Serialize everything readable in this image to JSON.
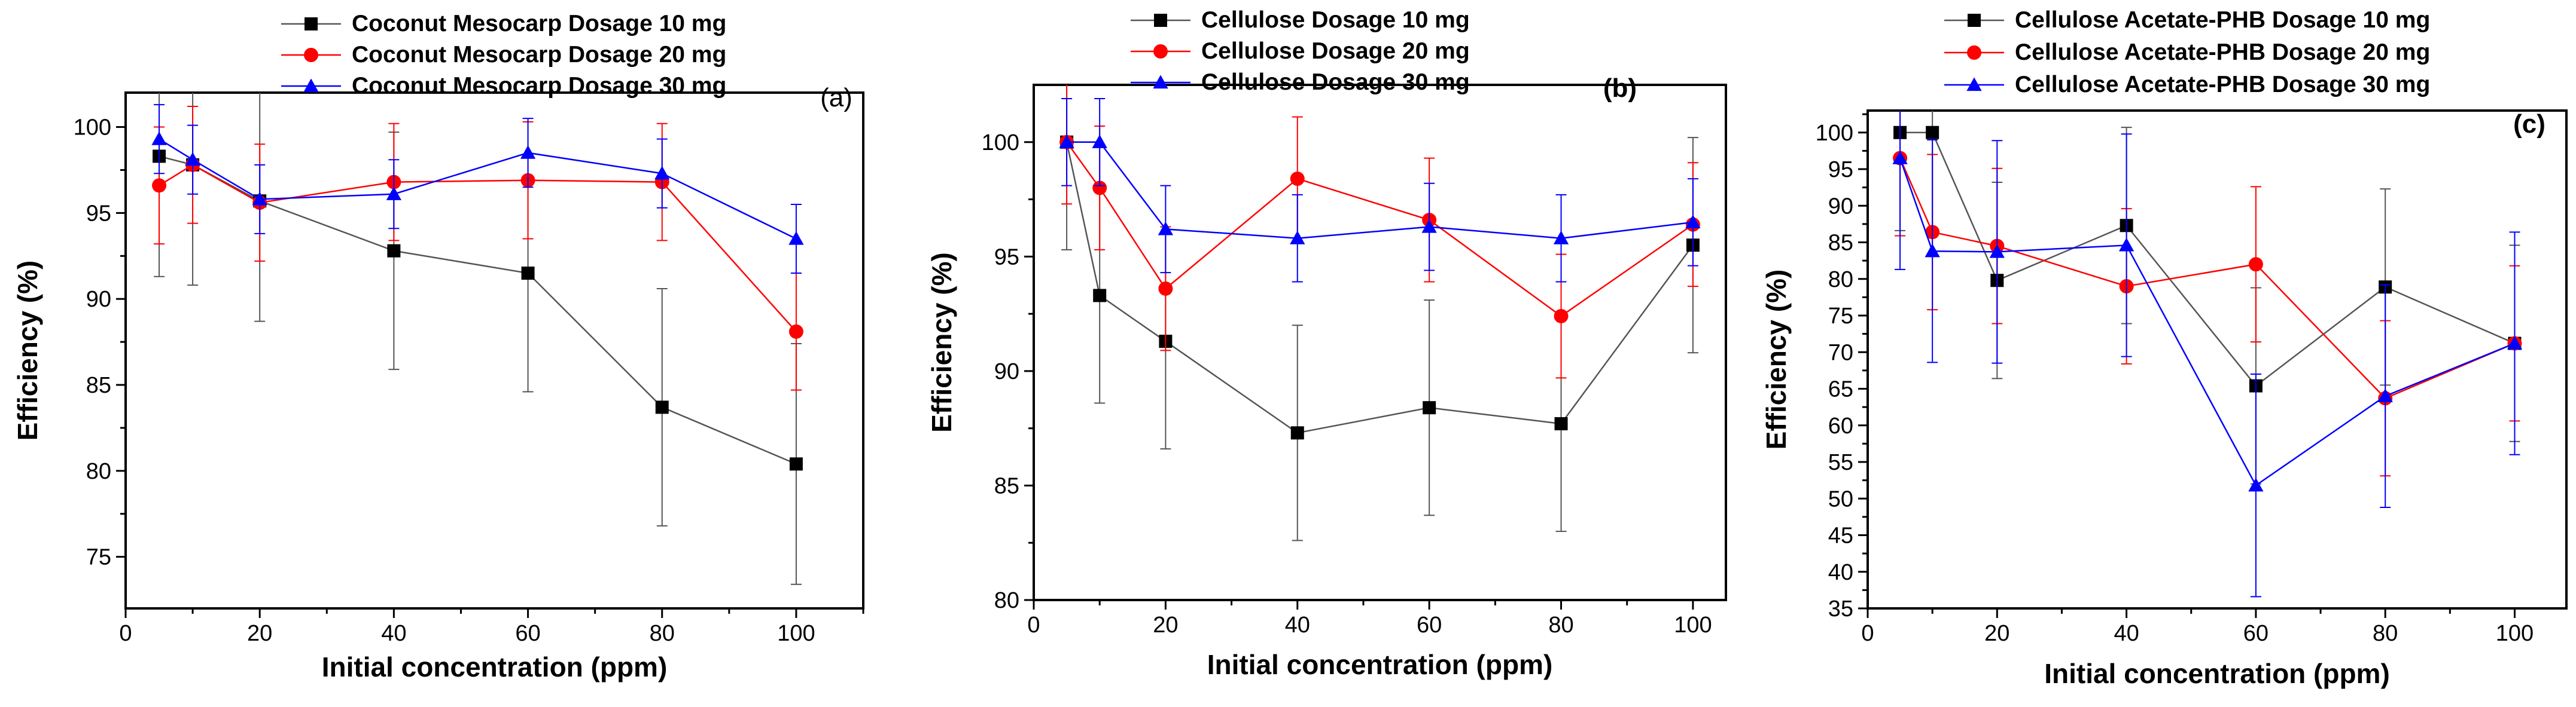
{
  "chart_data": [
    {
      "type": "line",
      "panel_label": "(a)",
      "xlabel": "Initial concentration (ppm)",
      "ylabel": "Efficiency (%)",
      "xlim": [
        0,
        110
      ],
      "ylim": [
        72,
        102
      ],
      "xticks": [
        0,
        20,
        40,
        60,
        80,
        100
      ],
      "yticks": [
        75,
        80,
        85,
        90,
        95,
        100
      ],
      "legend_position": "top",
      "series": [
        {
          "name": "Coconut Mesocarp Dosage 10 mg",
          "color": "#000000",
          "marker": "square",
          "x": [
            5,
            10,
            20,
            40,
            60,
            80,
            100
          ],
          "y": [
            98.3,
            97.8,
            95.7,
            92.8,
            91.5,
            83.7,
            80.4
          ],
          "err": [
            7.0,
            7.0,
            7.0,
            6.9,
            6.9,
            6.9,
            7.0
          ]
        },
        {
          "name": "Coconut Mesocarp Dosage 20 mg",
          "color": "#ff0000",
          "marker": "circle",
          "x": [
            5,
            10,
            20,
            40,
            60,
            80,
            100
          ],
          "y": [
            96.6,
            97.8,
            95.6,
            96.8,
            96.9,
            96.8,
            88.1
          ],
          "err": [
            3.4,
            3.4,
            3.4,
            3.4,
            3.4,
            3.4,
            3.4
          ]
        },
        {
          "name": "Coconut Mesocarp Dosage 30 mg",
          "color": "#0000ff",
          "marker": "triangle",
          "x": [
            5,
            10,
            20,
            40,
            60,
            80,
            100
          ],
          "y": [
            99.3,
            98.1,
            95.8,
            96.1,
            98.5,
            97.3,
            93.5
          ],
          "err": [
            2.0,
            2.0,
            2.0,
            2.0,
            2.0,
            2.0,
            2.0
          ]
        }
      ]
    },
    {
      "type": "line",
      "panel_label": "(b)",
      "xlabel": "Initial concentration (ppm)",
      "ylabel": "Efficiency (%)",
      "xlim": [
        0,
        105
      ],
      "ylim": [
        80,
        102.5
      ],
      "xticks": [
        0,
        20,
        40,
        60,
        80,
        100
      ],
      "yticks": [
        80,
        85,
        90,
        95,
        100
      ],
      "legend_position": "top",
      "series": [
        {
          "name": "Cellulose Dosage 10 mg",
          "color": "#000000",
          "marker": "square",
          "x": [
            5,
            10,
            20,
            40,
            60,
            80,
            100
          ],
          "y": [
            100,
            93.3,
            91.3,
            87.3,
            88.4,
            87.7,
            95.5
          ],
          "err": [
            4.7,
            4.7,
            4.7,
            4.7,
            4.7,
            4.7,
            4.7
          ]
        },
        {
          "name": "Cellulose Dosage 20 mg",
          "color": "#ff0000",
          "marker": "circle",
          "x": [
            5,
            10,
            20,
            40,
            60,
            80,
            100
          ],
          "y": [
            100,
            98,
            93.6,
            98.4,
            96.6,
            92.4,
            96.4
          ],
          "err": [
            2.7,
            2.7,
            2.7,
            2.7,
            2.7,
            2.7,
            2.7
          ]
        },
        {
          "name": "Cellulose Dosage 30 mg",
          "color": "#0000ff",
          "marker": "triangle",
          "x": [
            5,
            10,
            20,
            40,
            60,
            80,
            100
          ],
          "y": [
            100,
            100,
            96.2,
            95.8,
            96.3,
            95.8,
            96.5
          ],
          "err": [
            1.9,
            1.9,
            1.9,
            1.9,
            1.9,
            1.9,
            1.9
          ]
        }
      ]
    },
    {
      "type": "line",
      "panel_label": "(c)",
      "xlabel": "Initial concentration (ppm)",
      "ylabel": "Efficiency (%)",
      "xlim": [
        0,
        108
      ],
      "ylim": [
        35,
        103
      ],
      "xticks": [
        0,
        20,
        40,
        60,
        80,
        100
      ],
      "yticks": [
        35,
        40,
        45,
        50,
        55,
        60,
        65,
        70,
        75,
        80,
        85,
        90,
        95,
        100
      ],
      "legend_position": "top",
      "series": [
        {
          "name": "Cellulose Acetate-PHB Dosage 10 mg",
          "color": "#000000",
          "marker": "square",
          "x": [
            5,
            10,
            20,
            40,
            60,
            80,
            100
          ],
          "y": [
            100,
            100,
            79.8,
            87.3,
            65.4,
            78.9,
            71.2
          ],
          "err": [
            13.4,
            13.4,
            13.4,
            13.4,
            13.4,
            13.4,
            13.4
          ]
        },
        {
          "name": "Cellulose Acetate-PHB Dosage 20 mg",
          "color": "#ff0000",
          "marker": "circle",
          "x": [
            5,
            10,
            20,
            40,
            60,
            80,
            100
          ],
          "y": [
            96.5,
            86.4,
            84.5,
            79.0,
            82.0,
            63.7,
            71.2
          ],
          "err": [
            10.6,
            10.6,
            10.6,
            10.6,
            10.6,
            10.6,
            10.6
          ]
        },
        {
          "name": "Cellulose Acetate-PHB Dosage 30 mg",
          "color": "#0000ff",
          "marker": "triangle",
          "x": [
            5,
            10,
            20,
            40,
            60,
            80,
            100
          ],
          "y": [
            96.5,
            83.8,
            83.7,
            84.6,
            51.8,
            64.0,
            71.2
          ],
          "err": [
            15.2,
            15.2,
            15.2,
            15.2,
            15.2,
            15.2,
            15.2
          ]
        }
      ]
    }
  ]
}
